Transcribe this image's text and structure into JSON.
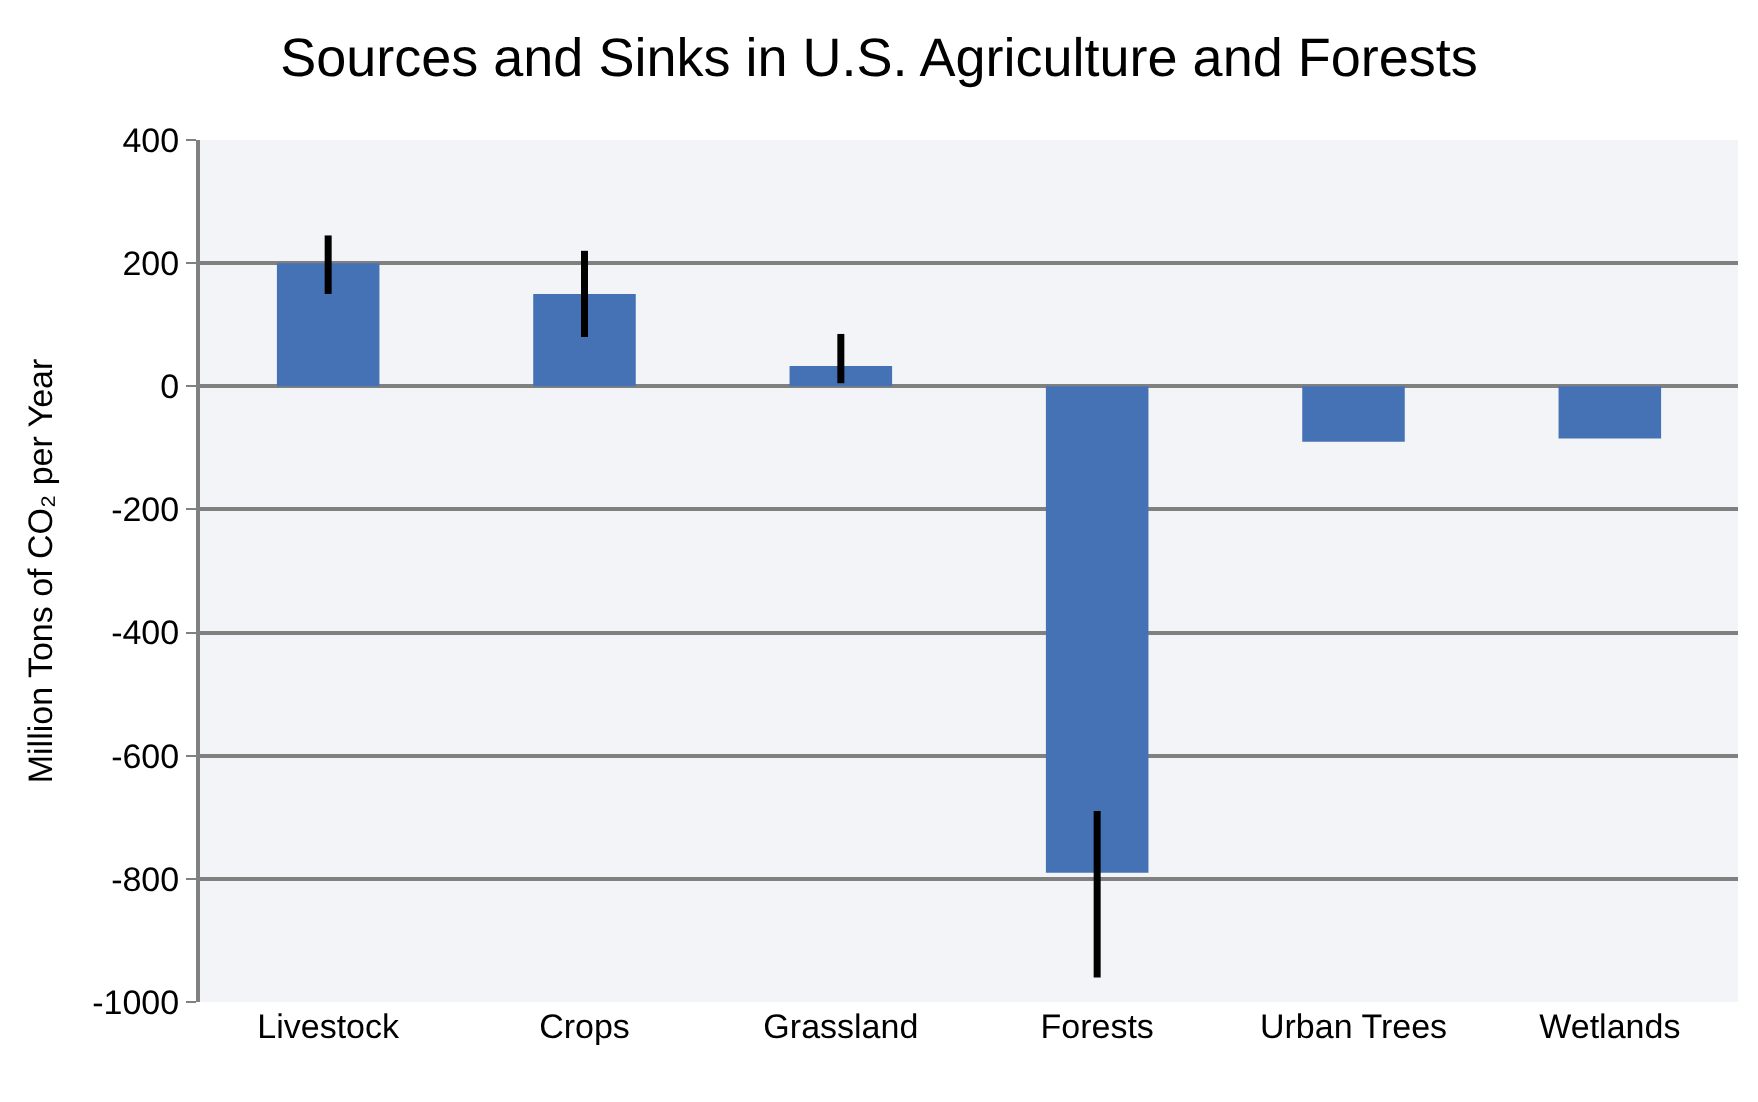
{
  "chart_data": {
    "type": "bar",
    "title": "Sources and Sinks in U.S. Agriculture and Forests",
    "ylabel": "Million Tons of CO₂ per Year",
    "categories": [
      "Livestock",
      "Crops",
      "Grassland",
      "Forests",
      "Urban Trees",
      "Wetlands"
    ],
    "values": [
      200,
      150,
      33,
      -790,
      -90,
      -85
    ],
    "errors": [
      [
        150,
        245
      ],
      [
        80,
        220
      ],
      [
        5,
        85
      ],
      [
        -960,
        -690
      ],
      null,
      null
    ],
    "color": "#4472b4",
    "ylim": [
      -1000,
      400
    ],
    "yticks": [
      -1000,
      -800,
      -600,
      -400,
      -200,
      0,
      200,
      400
    ],
    "grid": "y"
  }
}
